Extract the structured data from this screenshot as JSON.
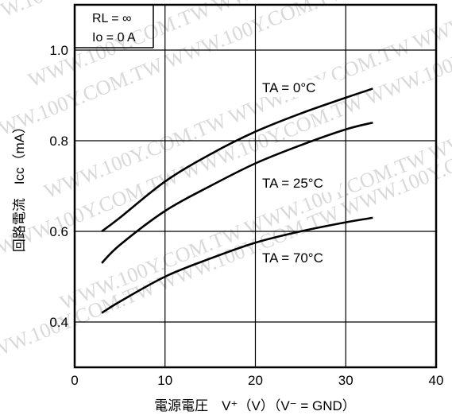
{
  "watermark": "WWW.100Y.COM.TW",
  "chart_data": {
    "type": "line",
    "xlabel": "電源電圧　V⁺（V）（V⁻ = GND）",
    "ylabel": "回路電流　Icc（mA）",
    "xlim": [
      0,
      40
    ],
    "ylim": [
      0.3,
      1.1
    ],
    "x_ticks": [
      "0",
      "10",
      "20",
      "30",
      "40"
    ],
    "y_ticks": [
      "0.4",
      "0.6",
      "0.8",
      "1.0"
    ],
    "y_tick_values": [
      0.4,
      0.6,
      0.8,
      1.0
    ],
    "x_tick_values": [
      0,
      10,
      20,
      30,
      40
    ],
    "grid": true,
    "conditions": [
      "RL = ∞",
      "Io = 0 A"
    ],
    "series": [
      {
        "name": "TA = 0°C",
        "x": [
          3,
          5,
          10,
          15,
          20,
          25,
          30,
          33
        ],
        "y": [
          0.6,
          0.63,
          0.71,
          0.77,
          0.82,
          0.86,
          0.895,
          0.915
        ]
      },
      {
        "name": "TA = 25°C",
        "x": [
          3,
          5,
          10,
          15,
          20,
          25,
          30,
          33
        ],
        "y": [
          0.53,
          0.57,
          0.645,
          0.7,
          0.75,
          0.79,
          0.825,
          0.84
        ]
      },
      {
        "name": "TA = 70°C",
        "x": [
          3,
          5,
          10,
          15,
          20,
          25,
          30,
          33
        ],
        "y": [
          0.42,
          0.445,
          0.5,
          0.54,
          0.575,
          0.6,
          0.62,
          0.63
        ]
      }
    ]
  }
}
